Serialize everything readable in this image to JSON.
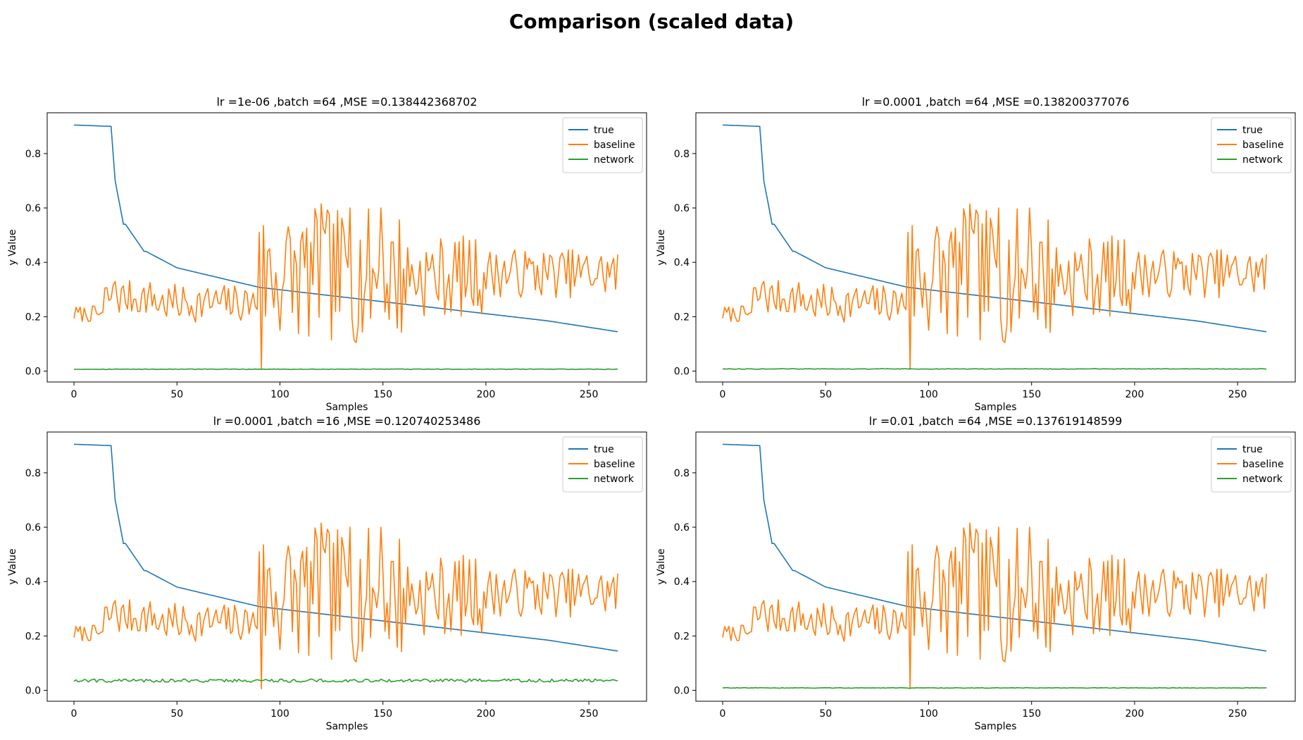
{
  "figure": {
    "title": "Comparison (scaled data)"
  },
  "chart_data": [
    {
      "type": "line",
      "title": "lr =1e-06 ,batch =64 ,MSE =0.138442368702",
      "xlabel": "Samples",
      "ylabel": "y Value",
      "xlim": [
        -13,
        278
      ],
      "ylim": [
        -0.04,
        0.95
      ],
      "x_ticks": [
        0,
        50,
        100,
        150,
        200,
        250
      ],
      "y_ticks": [
        0.0,
        0.2,
        0.4,
        0.6,
        0.8
      ],
      "legend": "top-right",
      "series": [
        {
          "name": "true",
          "color": "#1f77b4",
          "shape": "true"
        },
        {
          "name": "baseline",
          "color": "#ff7f0e",
          "shape": "baseline"
        },
        {
          "name": "network",
          "color": "#2ca02c",
          "shape": "network",
          "level": 0.007,
          "noise": 0.001
        }
      ]
    },
    {
      "type": "line",
      "title": "lr =0.0001 ,batch =64 ,MSE =0.138200377076",
      "xlabel": "Samples",
      "ylabel": "y Value",
      "xlim": [
        -13,
        278
      ],
      "ylim": [
        -0.04,
        0.95
      ],
      "x_ticks": [
        0,
        50,
        100,
        150,
        200,
        250
      ],
      "y_ticks": [
        0.0,
        0.2,
        0.4,
        0.6,
        0.8
      ],
      "legend": "top-right",
      "series": [
        {
          "name": "true",
          "color": "#1f77b4",
          "shape": "true"
        },
        {
          "name": "baseline",
          "color": "#ff7f0e",
          "shape": "baseline"
        },
        {
          "name": "network",
          "color": "#2ca02c",
          "shape": "network",
          "level": 0.008,
          "noise": 0.001
        }
      ]
    },
    {
      "type": "line",
      "title": "lr =0.0001 ,batch =16 ,MSE =0.120740253486",
      "xlabel": "Samples",
      "ylabel": "y Value",
      "xlim": [
        -13,
        278
      ],
      "ylim": [
        -0.04,
        0.95
      ],
      "x_ticks": [
        0,
        50,
        100,
        150,
        200,
        250
      ],
      "y_ticks": [
        0.0,
        0.2,
        0.4,
        0.6,
        0.8
      ],
      "legend": "top-right",
      "series": [
        {
          "name": "true",
          "color": "#1f77b4",
          "shape": "true"
        },
        {
          "name": "baseline",
          "color": "#ff7f0e",
          "shape": "baseline"
        },
        {
          "name": "network",
          "color": "#2ca02c",
          "shape": "network",
          "level": 0.036,
          "noise": 0.006
        }
      ]
    },
    {
      "type": "line",
      "title": "lr =0.01 ,batch =64 ,MSE =0.137619148599",
      "xlabel": "Samples",
      "ylabel": "y Value",
      "xlim": [
        -13,
        278
      ],
      "ylim": [
        -0.04,
        0.95
      ],
      "x_ticks": [
        0,
        50,
        100,
        150,
        200,
        250
      ],
      "y_ticks": [
        0.0,
        0.2,
        0.4,
        0.6,
        0.8
      ],
      "legend": "top-right",
      "series": [
        {
          "name": "true",
          "color": "#1f77b4",
          "shape": "true"
        },
        {
          "name": "baseline",
          "color": "#ff7f0e",
          "shape": "baseline"
        },
        {
          "name": "network",
          "color": "#2ca02c",
          "shape": "network",
          "level": 0.009,
          "noise": 0.001
        }
      ]
    }
  ]
}
